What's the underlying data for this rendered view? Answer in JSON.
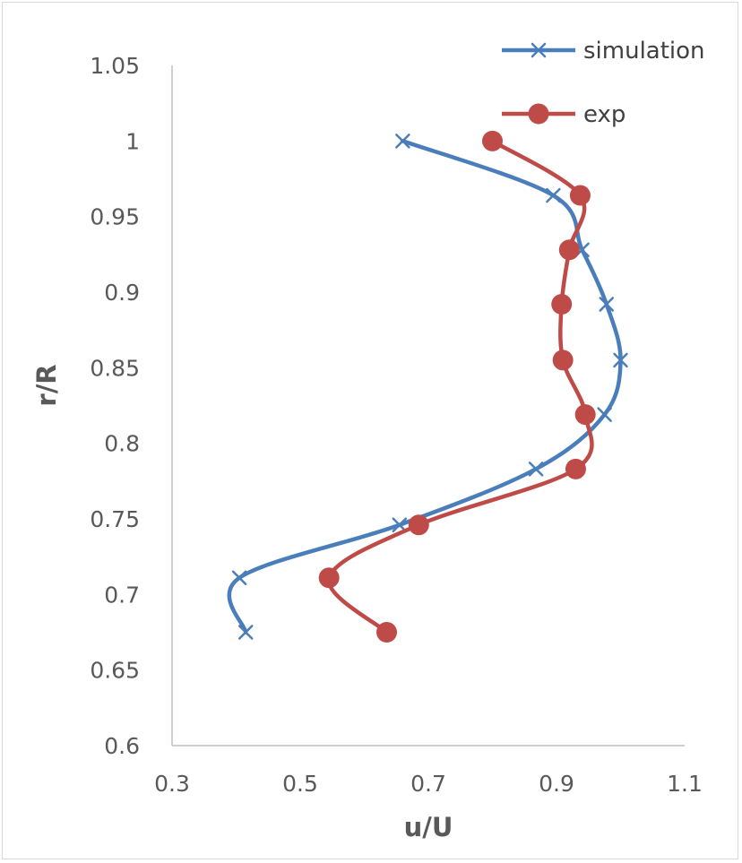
{
  "chart_data": {
    "type": "scatter",
    "title": "",
    "xlabel": "u/U",
    "ylabel": "r/R",
    "xlim": [
      0.3,
      1.1
    ],
    "ylim": [
      0.6,
      1.05
    ],
    "xticks": [
      0.3,
      0.5,
      0.7,
      0.9,
      1.1
    ],
    "xtick_labels": [
      "0.3",
      "0.5",
      "0.7",
      "0.9",
      "1.1"
    ],
    "yticks": [
      0.6,
      0.65,
      0.7,
      0.75,
      0.8,
      0.85,
      0.9,
      0.95,
      1,
      1.05
    ],
    "ytick_labels": [
      "0.6",
      "0.65",
      "0.7",
      "0.75",
      "0.8",
      "0.85",
      "0.9",
      "0.95",
      "1",
      "1.05"
    ],
    "grid": false,
    "legend_position": "top-right",
    "series": [
      {
        "name": "simulation",
        "color": "#4a7ebb",
        "marker": "x",
        "smooth": true,
        "points": [
          {
            "x": 0.66,
            "y": 1.0
          },
          {
            "x": 0.895,
            "y": 0.964
          },
          {
            "x": 0.94,
            "y": 0.928
          },
          {
            "x": 0.978,
            "y": 0.892
          },
          {
            "x": 1.0,
            "y": 0.855
          },
          {
            "x": 0.975,
            "y": 0.819
          },
          {
            "x": 0.868,
            "y": 0.783
          },
          {
            "x": 0.655,
            "y": 0.746
          },
          {
            "x": 0.405,
            "y": 0.711
          },
          {
            "x": 0.415,
            "y": 0.675
          }
        ]
      },
      {
        "name": "exp",
        "color": "#be4b48",
        "marker": "circle",
        "smooth": true,
        "points": [
          {
            "x": 0.8,
            "y": 1.0
          },
          {
            "x": 0.937,
            "y": 0.964
          },
          {
            "x": 0.92,
            "y": 0.928
          },
          {
            "x": 0.908,
            "y": 0.892
          },
          {
            "x": 0.91,
            "y": 0.855
          },
          {
            "x": 0.945,
            "y": 0.819
          },
          {
            "x": 0.93,
            "y": 0.783
          },
          {
            "x": 0.685,
            "y": 0.746
          },
          {
            "x": 0.545,
            "y": 0.711
          },
          {
            "x": 0.635,
            "y": 0.675
          }
        ]
      }
    ]
  }
}
